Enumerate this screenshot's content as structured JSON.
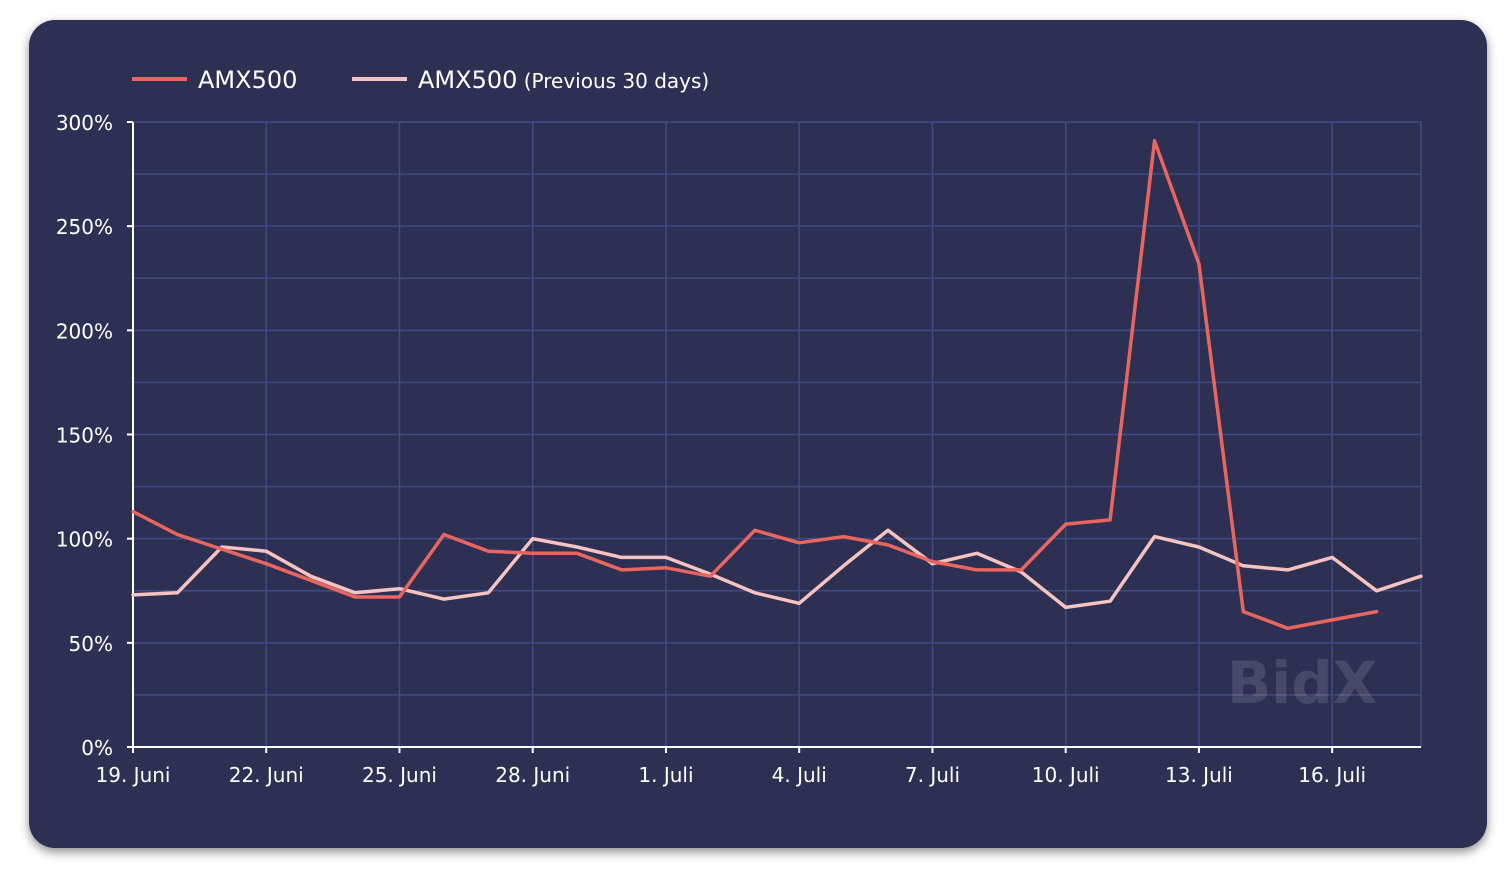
{
  "chart_data": {
    "type": "line",
    "title": "",
    "xlabel": "",
    "ylabel": "",
    "ylim": [
      0,
      300
    ],
    "y_ticks": [
      "0%",
      "50%",
      "100%",
      "150%",
      "200%",
      "250%",
      "300%"
    ],
    "x_ticks": [
      "19. Juni",
      "22. Juni",
      "25. Juni",
      "28. Juni",
      "1. Juli",
      "4. Juli",
      "7. Juli",
      "10. Juli",
      "13. Juli",
      "16. Juli"
    ],
    "x": [
      "19. Juni",
      "20. Juni",
      "21. Juni",
      "22. Juni",
      "23. Juni",
      "24. Juni",
      "25. Juni",
      "26. Juni",
      "27. Juni",
      "28. Juni",
      "29. Juni",
      "30. Juni",
      "1. Juli",
      "2. Juli",
      "3. Juli",
      "4. Juli",
      "5. Juli",
      "6. Juli",
      "7. Juli",
      "8. Juli",
      "9. Juli",
      "10. Juli",
      "11. Juli",
      "12. Juli",
      "13. Juli",
      "14. Juli",
      "15. Juli",
      "16. Juli",
      "17. Juli",
      "18. Juli"
    ],
    "grid": true,
    "legend_position": "top-left",
    "series": [
      {
        "name": "AMX500",
        "color": "#e8665f",
        "values": [
          113,
          102,
          95,
          88,
          80,
          72,
          72,
          102,
          94,
          93,
          93,
          85,
          86,
          82,
          104,
          98,
          101,
          97,
          89,
          85,
          85,
          107,
          109,
          291,
          232,
          65,
          57,
          61,
          65,
          null
        ]
      },
      {
        "name": "AMX500",
        "name_suffix": "(Previous 30 days)",
        "color": "#f6c3c0",
        "values": [
          73,
          74,
          96,
          94,
          82,
          74,
          76,
          71,
          74,
          100,
          96,
          91,
          91,
          83,
          74,
          69,
          87,
          104,
          88,
          93,
          84,
          67,
          70,
          101,
          96,
          87,
          85,
          91,
          75,
          82
        ]
      }
    ]
  },
  "watermark": "BidX"
}
